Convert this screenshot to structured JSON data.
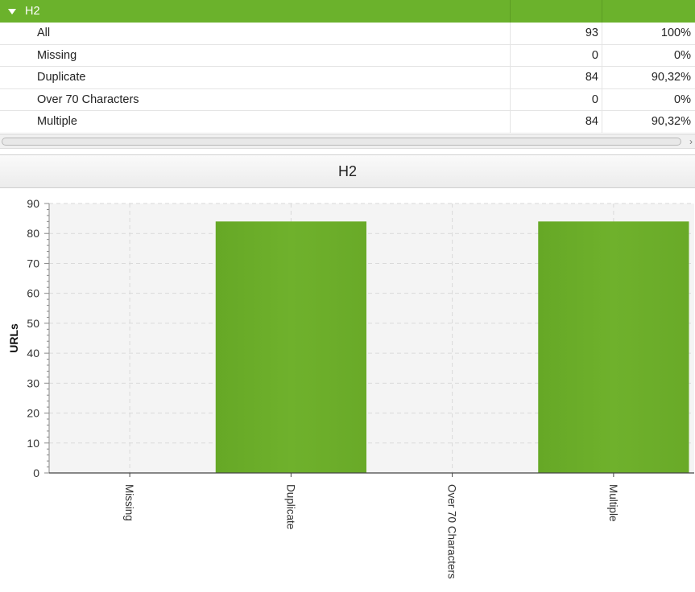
{
  "table": {
    "group": {
      "label": "H2"
    },
    "rows": [
      {
        "label": "All",
        "count": "93",
        "percent": "100%"
      },
      {
        "label": "Missing",
        "count": "0",
        "percent": "0%"
      },
      {
        "label": "Duplicate",
        "count": "84",
        "percent": "90,32%"
      },
      {
        "label": "Over 70 Characters",
        "count": "0",
        "percent": "0%"
      },
      {
        "label": "Multiple",
        "count": "84",
        "percent": "90,32%"
      }
    ]
  },
  "chart_header": {
    "title": "H2"
  },
  "chart_data": {
    "type": "bar",
    "title": "H2",
    "categories": [
      "Missing",
      "Duplicate",
      "Over 70 Characters",
      "Multiple"
    ],
    "values": [
      0,
      84,
      0,
      84
    ],
    "xlabel": "",
    "ylabel": "URLs",
    "ylim": [
      0,
      90
    ],
    "yticks": [
      0,
      10,
      20,
      30,
      40,
      50,
      60,
      70,
      80,
      90
    ],
    "grid": true,
    "legend": "none",
    "bar_color": "#6fb12c"
  },
  "colors": {
    "accent": "#6bb22c",
    "plot_background": "#f4f4f4"
  }
}
